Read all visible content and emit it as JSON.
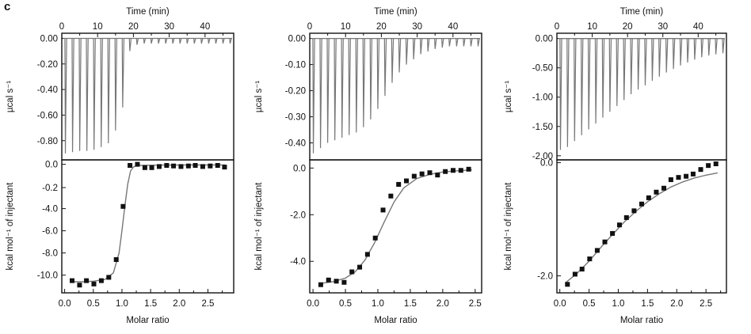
{
  "panel_letter": "c",
  "chart_data": [
    {
      "type": "line",
      "panel": "thermogram-1",
      "title": "",
      "xlabel": "Time (min)",
      "ylabel": "µcal s⁻¹",
      "xlim": [
        0,
        48
      ],
      "ylim": [
        -0.95,
        0.04
      ],
      "x_ticks": [
        "0",
        "10",
        "20",
        "30",
        "40"
      ],
      "y_ticks": [
        "0.00",
        "-0.20",
        "-0.40",
        "-0.60",
        "-0.80"
      ],
      "injection_times": [
        1,
        3,
        5,
        7,
        9,
        11,
        13,
        15,
        17,
        19,
        21,
        23,
        25,
        27,
        29,
        31,
        33,
        35,
        37,
        39,
        41,
        43,
        45,
        47
      ],
      "peak_values": [
        -0.9,
        -0.89,
        -0.88,
        -0.88,
        -0.87,
        -0.85,
        -0.82,
        -0.72,
        -0.54,
        -0.1,
        -0.05,
        -0.04,
        -0.04,
        -0.04,
        -0.04,
        -0.04,
        -0.04,
        -0.04,
        -0.04,
        -0.04,
        -0.04,
        -0.04,
        -0.04,
        -0.04
      ]
    },
    {
      "type": "scatter",
      "panel": "binding-isotherm-1",
      "xlabel": "Molar ratio",
      "ylabel": "kcal mol⁻¹ of injectant",
      "xlim": [
        -0.05,
        2.95
      ],
      "ylim": [
        -11.6,
        0.4
      ],
      "x_ticks": [
        "0.0",
        "0.5",
        "1.0",
        "1.5",
        "2.0",
        "2.5"
      ],
      "y_ticks": [
        "0.0",
        "-0.2",
        "-4.0",
        "-6.0",
        "-8.0",
        "-10.0"
      ],
      "points": {
        "x": [
          0.13,
          0.26,
          0.38,
          0.51,
          0.64,
          0.77,
          0.9,
          1.02,
          1.14,
          1.27,
          1.4,
          1.52,
          1.65,
          1.78,
          1.9,
          2.03,
          2.16,
          2.28,
          2.41,
          2.54,
          2.67,
          2.79
        ],
        "y": [
          -10.5,
          -10.9,
          -10.5,
          -10.8,
          -10.5,
          -10.2,
          -8.6,
          -3.8,
          -0.1,
          0.0,
          -0.3,
          -0.3,
          -0.2,
          -0.1,
          -0.15,
          -0.2,
          -0.15,
          -0.1,
          -0.2,
          -0.15,
          -0.1,
          -0.25
        ]
      },
      "fit": {
        "x": [
          0.1,
          0.3,
          0.5,
          0.7,
          0.85,
          0.95,
          1.0,
          1.05,
          1.1,
          1.15,
          1.2,
          1.25,
          1.3,
          1.5,
          1.8,
          2.2,
          2.8
        ],
        "y": [
          -10.6,
          -10.6,
          -10.55,
          -10.4,
          -9.8,
          -8.0,
          -6.0,
          -3.8,
          -1.8,
          -0.6,
          -0.25,
          -0.12,
          -0.1,
          -0.08,
          -0.07,
          -0.06,
          -0.06
        ]
      }
    },
    {
      "type": "line",
      "panel": "thermogram-2",
      "xlabel": "Time (min)",
      "ylabel": "µcal s⁻¹",
      "xlim": [
        0,
        48
      ],
      "ylim": [
        -0.465,
        0.02
      ],
      "x_ticks": [
        "0",
        "10",
        "20",
        "30",
        "40"
      ],
      "y_ticks": [
        "0.00",
        "-0.10",
        "-0.20",
        "-0.30",
        "-0.40"
      ],
      "injection_times": [
        1,
        3,
        5,
        7,
        9,
        11,
        13,
        15,
        17,
        19,
        21,
        23,
        25,
        27,
        29,
        31,
        33,
        35,
        37,
        39,
        41,
        43,
        45,
        47
      ],
      "peak_values": [
        -0.44,
        -0.42,
        -0.4,
        -0.39,
        -0.38,
        -0.37,
        -0.36,
        -0.34,
        -0.31,
        -0.27,
        -0.22,
        -0.17,
        -0.13,
        -0.1,
        -0.08,
        -0.06,
        -0.05,
        -0.04,
        -0.035,
        -0.03,
        -0.03,
        -0.03,
        -0.03,
        -0.03
      ]
    },
    {
      "type": "scatter",
      "panel": "binding-isotherm-2",
      "xlabel": "Molar ratio",
      "ylabel": "kcal mol⁻¹ of injectant",
      "xlim": [
        -0.05,
        2.6
      ],
      "ylim": [
        -5.35,
        0.35
      ],
      "x_ticks": [
        "0.0",
        "0.5",
        "1.0",
        "1.5",
        "2.0",
        "2.5"
      ],
      "y_ticks": [
        "0.0",
        "-2.0",
        "-4.0"
      ],
      "points": {
        "x": [
          0.12,
          0.24,
          0.36,
          0.48,
          0.6,
          0.72,
          0.84,
          0.96,
          1.08,
          1.2,
          1.32,
          1.44,
          1.56,
          1.68,
          1.8,
          1.92,
          2.04,
          2.16,
          2.28,
          2.4
        ],
        "y": [
          -5.0,
          -4.8,
          -4.85,
          -4.9,
          -4.45,
          -4.25,
          -3.7,
          -3.0,
          -1.8,
          -1.2,
          -0.7,
          -0.55,
          -0.35,
          -0.25,
          -0.2,
          -0.3,
          -0.15,
          -0.1,
          -0.1,
          -0.05
        ]
      },
      "fit": {
        "x": [
          0.1,
          0.3,
          0.5,
          0.65,
          0.8,
          0.95,
          1.1,
          1.25,
          1.4,
          1.6,
          1.8,
          2.0,
          2.2,
          2.45
        ],
        "y": [
          -4.95,
          -4.88,
          -4.72,
          -4.45,
          -3.95,
          -3.2,
          -2.3,
          -1.45,
          -0.85,
          -0.45,
          -0.27,
          -0.17,
          -0.12,
          -0.08
        ]
      }
    },
    {
      "type": "line",
      "panel": "thermogram-3",
      "xlabel": "Time (min)",
      "ylabel": "µcal s⁻¹",
      "xlim": [
        0,
        48
      ],
      "ylim": [
        -2.07,
        0.09
      ],
      "x_ticks": [
        "0",
        "10",
        "20",
        "30",
        "40"
      ],
      "y_ticks": [
        "0.00",
        "-0.50",
        "-1.00",
        "-1.50",
        "-2.00"
      ],
      "injection_times": [
        1,
        3,
        5,
        7,
        9,
        11,
        13,
        15,
        17,
        19,
        21,
        23,
        25,
        27,
        29,
        31,
        33,
        35,
        37,
        39,
        41,
        43,
        45,
        47
      ],
      "peak_values": [
        -1.9,
        -1.85,
        -1.75,
        -1.65,
        -1.55,
        -1.45,
        -1.35,
        -1.25,
        -1.15,
        -1.05,
        -0.95,
        -0.87,
        -0.8,
        -0.72,
        -0.65,
        -0.58,
        -0.52,
        -0.46,
        -0.41,
        -0.36,
        -0.32,
        -0.29,
        -0.27,
        -0.25
      ]
    },
    {
      "type": "scatter",
      "panel": "binding-isotherm-3",
      "xlabel": "Molar ratio",
      "ylabel": "kcal mol⁻¹ of injectant",
      "xlim": [
        -0.05,
        2.85
      ],
      "ylim": [
        -2.3,
        0.05
      ],
      "x_ticks": [
        "0.0",
        "0.5",
        "1.0",
        "1.5",
        "2.0",
        "2.5"
      ],
      "y_ticks": [
        "0.0",
        "-2.0"
      ],
      "points": {
        "x": [
          0.13,
          0.26,
          0.38,
          0.51,
          0.64,
          0.77,
          0.9,
          1.02,
          1.14,
          1.27,
          1.4,
          1.52,
          1.65,
          1.78,
          1.9,
          2.03,
          2.16,
          2.28,
          2.41,
          2.54,
          2.67
        ],
        "y": [
          -2.15,
          -1.97,
          -1.88,
          -1.7,
          -1.55,
          -1.4,
          -1.25,
          -1.1,
          -0.97,
          -0.85,
          -0.73,
          -0.62,
          -0.52,
          -0.45,
          -0.3,
          -0.26,
          -0.24,
          -0.2,
          -0.12,
          -0.05,
          -0.02
        ]
      },
      "fit": {
        "x": [
          0.1,
          0.3,
          0.5,
          0.7,
          0.9,
          1.1,
          1.3,
          1.5,
          1.7,
          1.9,
          2.1,
          2.3,
          2.5,
          2.7
        ],
        "y": [
          -2.12,
          -1.95,
          -1.74,
          -1.5,
          -1.27,
          -1.05,
          -0.86,
          -0.69,
          -0.55,
          -0.43,
          -0.34,
          -0.27,
          -0.22,
          -0.18
        ]
      }
    }
  ]
}
